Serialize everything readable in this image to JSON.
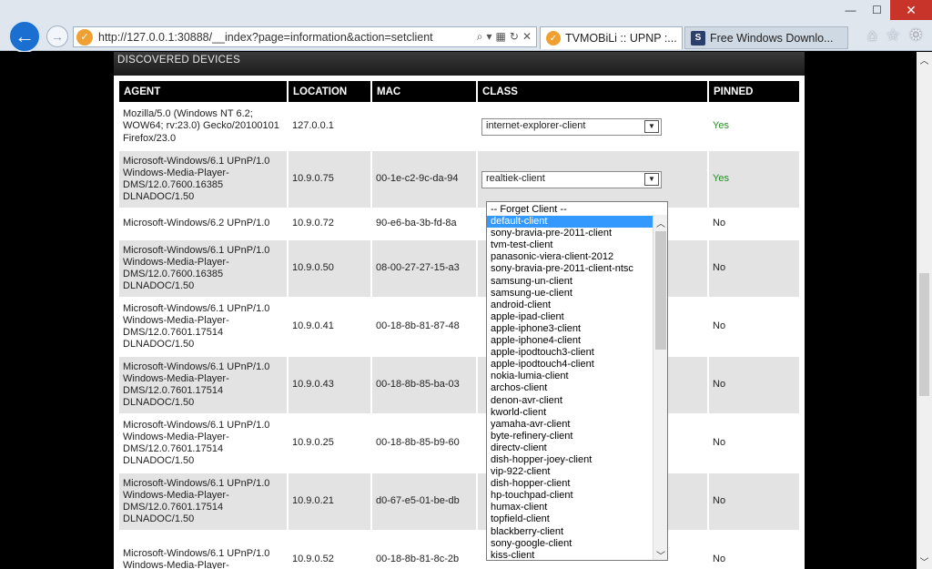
{
  "browser": {
    "url": "http://127.0.0.1:30888/__index?page=information&action=setclient",
    "tabs": [
      {
        "title": "TVMOBiLi :: UPNP :...",
        "active": true
      },
      {
        "title": "Free Windows Downlo...",
        "active": false
      }
    ]
  },
  "section_title": "DISCOVERED DEVICES",
  "columns": [
    "AGENT",
    "LOCATION",
    "MAC",
    "CLASS",
    "PINNED"
  ],
  "rows": [
    {
      "agent": "Mozilla/5.0 (Windows NT 6.2; WOW64; rv:23.0) Gecko/20100101 Firefox/23.0",
      "location": "127.0.0.1",
      "mac": "",
      "class": "internet-explorer-client",
      "pinned": "Yes"
    },
    {
      "agent": "Microsoft-Windows/6.1 UPnP/1.0 Windows-Media-Player-DMS/12.0.7600.16385 DLNADOC/1.50",
      "location": "10.9.0.75",
      "mac": "00-1e-c2-9c-da-94",
      "class": "realtiek-client",
      "pinned": "Yes"
    },
    {
      "agent": "Microsoft-Windows/6.2 UPnP/1.0",
      "location": "10.9.0.72",
      "mac": "90-e6-ba-3b-fd-8a",
      "class": "",
      "pinned": "No"
    },
    {
      "agent": "Microsoft-Windows/6.1 UPnP/1.0 Windows-Media-Player-DMS/12.0.7600.16385 DLNADOC/1.50",
      "location": "10.9.0.50",
      "mac": "08-00-27-27-15-a3",
      "class": "",
      "pinned": "No"
    },
    {
      "agent": "Microsoft-Windows/6.1 UPnP/1.0 Windows-Media-Player-DMS/12.0.7601.17514 DLNADOC/1.50",
      "location": "10.9.0.41",
      "mac": "00-18-8b-81-87-48",
      "class": "",
      "pinned": "No"
    },
    {
      "agent": "Microsoft-Windows/6.1 UPnP/1.0 Windows-Media-Player-DMS/12.0.7601.17514 DLNADOC/1.50",
      "location": "10.9.0.43",
      "mac": "00-18-8b-85-ba-03",
      "class": "",
      "pinned": "No"
    },
    {
      "agent": "Microsoft-Windows/6.1 UPnP/1.0 Windows-Media-Player-DMS/12.0.7601.17514 DLNADOC/1.50",
      "location": "10.9.0.25",
      "mac": "00-18-8b-85-b9-60",
      "class": "",
      "pinned": "No"
    },
    {
      "agent": "Microsoft-Windows/6.1 UPnP/1.0 Windows-Media-Player-DMS/12.0.7601.17514 DLNADOC/1.50",
      "location": "10.9.0.21",
      "mac": "d0-67-e5-01-be-db",
      "class": "",
      "pinned": "No"
    },
    {
      "agent": "Microsoft-Windows/6.1 UPnP/1.0 Windows-Media-Player-",
      "location": "10.9.0.52",
      "mac": "00-18-8b-81-8c-2b",
      "class": "",
      "pinned": "No"
    }
  ],
  "dropdown": {
    "highlighted": "default-client",
    "options": [
      "-- Forget Client --",
      "default-client",
      "sony-bravia-pre-2011-client",
      "tvm-test-client",
      "panasonic-viera-client-2012",
      "sony-bravia-pre-2011-client-ntsc",
      "samsung-un-client",
      "samsung-ue-client",
      "android-client",
      "apple-ipad-client",
      "apple-iphone3-client",
      "apple-iphone4-client",
      "apple-ipodtouch3-client",
      "apple-ipodtouch4-client",
      "nokia-lumia-client",
      "archos-client",
      "denon-avr-client",
      "kworld-client",
      "yamaha-avr-client",
      "byte-refinery-client",
      "directv-client",
      "dish-hopper-joey-client",
      "vip-922-client",
      "dish-hopper-client",
      "hp-touchpad-client",
      "humax-client",
      "topfield-client",
      "blackberry-client",
      "sony-google-client",
      "kiss-client"
    ]
  },
  "icons": {
    "back": "back-arrow-icon",
    "forward": "forward-arrow-icon",
    "home": "home-icon",
    "favorites": "star-icon",
    "settings": "gear-icon"
  }
}
